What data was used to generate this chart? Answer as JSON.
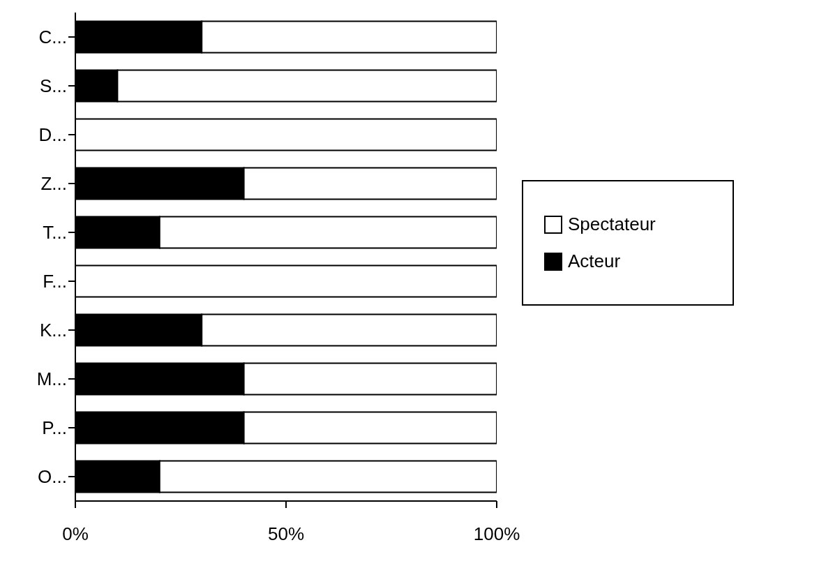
{
  "chart_data": {
    "type": "bar",
    "orientation": "horizontal",
    "stacked": true,
    "categories": [
      "C...",
      "S...",
      "D...",
      "Z...",
      "T...",
      "F...",
      "K...",
      "M...",
      "P...",
      "O..."
    ],
    "series": [
      {
        "name": "Acteur",
        "color": "#000000",
        "values": [
          30,
          10,
          0,
          40,
          20,
          0,
          30,
          40,
          40,
          20
        ]
      },
      {
        "name": "Spectateur",
        "color": "#ffffff",
        "values": [
          70,
          90,
          100,
          60,
          80,
          100,
          70,
          60,
          60,
          80
        ]
      }
    ],
    "xlim": [
      0,
      100
    ],
    "xticks": [
      {
        "value": 0,
        "label": "0%"
      },
      {
        "value": 50,
        "label": "50%"
      },
      {
        "value": 100,
        "label": "100%"
      }
    ],
    "grid": false,
    "legend": "right"
  }
}
